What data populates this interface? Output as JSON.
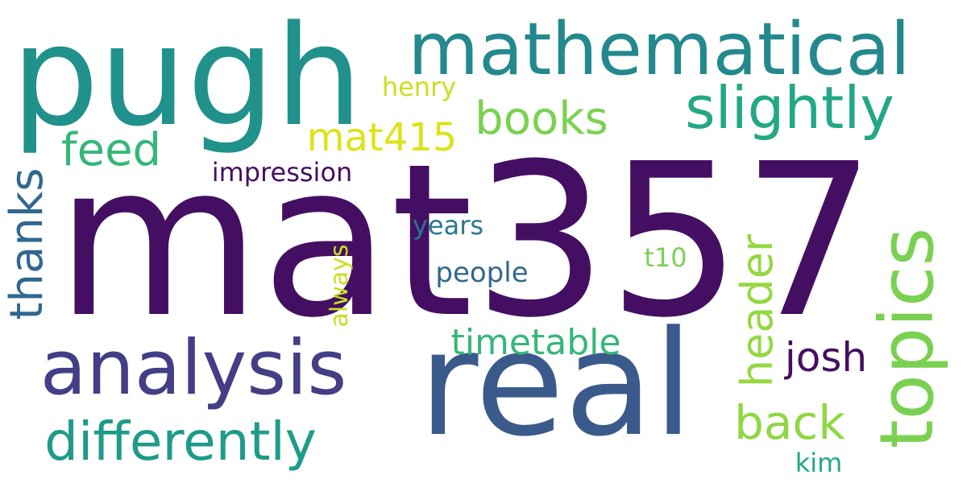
{
  "words": [
    {
      "id": "mat357",
      "text": "mat357",
      "color": "#440f62"
    },
    {
      "id": "pugh",
      "text": "pugh",
      "color": "#21918c"
    },
    {
      "id": "real",
      "text": "real",
      "color": "#3b5a8c"
    },
    {
      "id": "mathematical",
      "text": "mathematical",
      "color": "#23898e"
    },
    {
      "id": "analysis",
      "text": "analysis",
      "color": "#433e85"
    },
    {
      "id": "topics",
      "text": "topics",
      "color": "#7ad151"
    },
    {
      "id": "slightly",
      "text": "slightly",
      "color": "#22a884"
    },
    {
      "id": "differently",
      "text": "differently",
      "color": "#1e9b8a"
    },
    {
      "id": "thanks",
      "text": "thanks",
      "color": "#31688e"
    },
    {
      "id": "books",
      "text": "books",
      "color": "#7ad151"
    },
    {
      "id": "feed",
      "text": "feed",
      "color": "#35b779"
    },
    {
      "id": "header",
      "text": "header",
      "color": "#95d840"
    },
    {
      "id": "back",
      "text": "back",
      "color": "#8fd744"
    },
    {
      "id": "josh",
      "text": "josh",
      "color": "#440f62"
    },
    {
      "id": "timetable",
      "text": "timetable",
      "color": "#35b779"
    },
    {
      "id": "mat415",
      "text": "mat415",
      "color": "#dde318"
    },
    {
      "id": "impression",
      "text": "impression",
      "color": "#440f62"
    },
    {
      "id": "years",
      "text": "years",
      "color": "#2a788e"
    },
    {
      "id": "people",
      "text": "people",
      "color": "#31688e"
    },
    {
      "id": "always",
      "text": "always",
      "color": "#c8e020"
    },
    {
      "id": "t10",
      "text": "t10",
      "color": "#7ad151"
    },
    {
      "id": "henry",
      "text": "henry",
      "color": "#c8e020"
    },
    {
      "id": "kim",
      "text": "kim",
      "color": "#22a884"
    }
  ]
}
